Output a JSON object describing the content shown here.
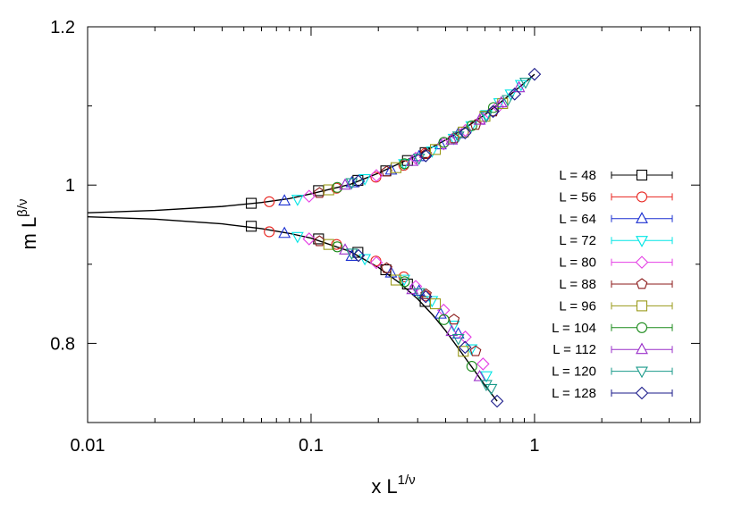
{
  "chart_data": {
    "type": "scatter",
    "xlabel": "x L",
    "xlabel_sup": "1/ν",
    "ylabel": "m L",
    "ylabel_sup": "β/ν",
    "x_scale": "log",
    "xlim": [
      0.01,
      5.5
    ],
    "ylim": [
      0.7,
      1.2
    ],
    "x_ticks": [
      {
        "value": 0.01,
        "label": "0.01"
      },
      {
        "value": 0.1,
        "label": "0.1"
      },
      {
        "value": 1,
        "label": "1"
      }
    ],
    "y_ticks": [
      {
        "value": 0.8,
        "label": "0.8"
      },
      {
        "value": 1.0,
        "label": "1"
      },
      {
        "value": 1.2,
        "label": "1.2"
      }
    ],
    "grid": false,
    "legend_position": "right",
    "fit_curves": [
      {
        "x": [
          0.01,
          0.02,
          0.04,
          0.06,
          0.08,
          0.1,
          0.15,
          0.2,
          0.3,
          0.4,
          0.5,
          0.6,
          0.7,
          0.8,
          0.9,
          1.0
        ],
        "y": [
          0.965,
          0.968,
          0.973,
          0.978,
          0.983,
          0.989,
          1.001,
          1.015,
          1.038,
          1.057,
          1.074,
          1.089,
          1.104,
          1.117,
          1.129,
          1.14
        ]
      },
      {
        "x": [
          0.01,
          0.02,
          0.04,
          0.06,
          0.08,
          0.1,
          0.15,
          0.2,
          0.25,
          0.3,
          0.35,
          0.4,
          0.45,
          0.5,
          0.55,
          0.6,
          0.68
        ],
        "y": [
          0.96,
          0.957,
          0.951,
          0.945,
          0.939,
          0.933,
          0.916,
          0.896,
          0.876,
          0.856,
          0.836,
          0.816,
          0.796,
          0.778,
          0.762,
          0.747,
          0.727
        ]
      }
    ],
    "series": [
      {
        "name": "L = 48",
        "marker": "square",
        "color": "#000000",
        "upper": {
          "x": [
            0.054,
            0.108,
            0.162,
            0.216,
            0.27,
            0.324
          ],
          "y": [
            0.977,
            0.993,
            1.006,
            1.018,
            1.031,
            1.041
          ]
        },
        "lower": {
          "x": [
            0.054,
            0.108,
            0.162,
            0.216,
            0.27,
            0.324
          ],
          "y": [
            0.948,
            0.932,
            0.915,
            0.893,
            0.875,
            0.853
          ]
        }
      },
      {
        "name": "L = 56",
        "marker": "circle",
        "color": "#e8231e",
        "upper": {
          "x": [
            0.065,
            0.13,
            0.195,
            0.26,
            0.325
          ],
          "y": [
            0.979,
            0.996,
            1.01,
            1.025,
            1.04
          ]
        },
        "lower": {
          "x": [
            0.065,
            0.13,
            0.195,
            0.26,
            0.325
          ],
          "y": [
            0.941,
            0.925,
            0.904,
            0.884,
            0.86
          ]
        }
      },
      {
        "name": "L = 64",
        "marker": "triangle-up",
        "color": "#1a2fd1",
        "upper": {
          "x": [
            0.076,
            0.152,
            0.228,
            0.304,
            0.38,
            0.456
          ],
          "y": [
            0.98,
            1.003,
            1.019,
            1.036,
            1.051,
            1.065
          ]
        },
        "lower": {
          "x": [
            0.076,
            0.152,
            0.228,
            0.304,
            0.38,
            0.456
          ],
          "y": [
            0.939,
            0.91,
            0.889,
            0.866,
            0.837,
            0.812
          ]
        }
      },
      {
        "name": "L = 72",
        "marker": "triangle-down",
        "color": "#00e5e5",
        "upper": {
          "x": [
            0.087,
            0.174,
            0.261,
            0.348,
            0.435,
            0.522,
            0.609,
            0.696,
            0.783,
            0.87
          ],
          "y": [
            0.982,
            1.008,
            1.027,
            1.043,
            1.059,
            1.075,
            1.089,
            1.104,
            1.115,
            1.127
          ]
        },
        "lower": {
          "x": [
            0.087,
            0.174,
            0.261,
            0.348,
            0.435,
            0.522,
            0.609
          ],
          "y": [
            0.935,
            0.907,
            0.881,
            0.854,
            0.823,
            0.793,
            0.759
          ]
        }
      },
      {
        "name": "L = 80",
        "marker": "diamond",
        "color": "#e43fe4",
        "upper": {
          "x": [
            0.098,
            0.196,
            0.294,
            0.392,
            0.49,
            0.588,
            0.686
          ],
          "y": [
            0.986,
            1.012,
            1.034,
            1.052,
            1.069,
            1.084,
            1.099
          ]
        },
        "lower": {
          "x": [
            0.098,
            0.196,
            0.294,
            0.392,
            0.49,
            0.588
          ],
          "y": [
            0.932,
            0.902,
            0.872,
            0.842,
            0.808,
            0.774
          ]
        }
      },
      {
        "name": "L = 88",
        "marker": "pentagon",
        "color": "#8b1a1a",
        "upper": {
          "x": [
            0.109,
            0.218,
            0.327,
            0.436,
            0.545,
            0.654
          ],
          "y": [
            0.99,
            1.017,
            1.039,
            1.059,
            1.076,
            1.093
          ]
        },
        "lower": {
          "x": [
            0.109,
            0.218,
            0.327,
            0.436,
            0.545
          ],
          "y": [
            0.929,
            0.895,
            0.862,
            0.83,
            0.79
          ]
        }
      },
      {
        "name": "L = 96",
        "marker": "square",
        "color": "#9a9a1a",
        "upper": {
          "x": [
            0.12,
            0.24,
            0.36,
            0.48,
            0.6,
            0.72
          ],
          "y": [
            0.994,
            1.022,
            1.045,
            1.067,
            1.087,
            1.103
          ]
        },
        "lower": {
          "x": [
            0.12,
            0.24,
            0.36,
            0.48
          ],
          "y": [
            0.925,
            0.88,
            0.85,
            0.79
          ]
        }
      },
      {
        "name": "L = 104",
        "marker": "circle",
        "color": "#1a8a1a",
        "upper": {
          "x": [
            0.131,
            0.262,
            0.393,
            0.524,
            0.655
          ],
          "y": [
            0.997,
            1.027,
            1.054,
            1.075,
            1.098
          ]
        },
        "lower": {
          "x": [
            0.131,
            0.262,
            0.393,
            0.524
          ],
          "y": [
            0.922,
            0.878,
            0.83,
            0.771
          ]
        }
      },
      {
        "name": "L = 112",
        "marker": "triangle-up",
        "color": "#9a2fc9",
        "upper": {
          "x": [
            0.142,
            0.284,
            0.426,
            0.568,
            0.71,
            0.852
          ],
          "y": [
            1.0,
            1.03,
            1.057,
            1.082,
            1.104,
            1.123
          ]
        },
        "lower": {
          "x": [
            0.142,
            0.284,
            0.426,
            0.568
          ],
          "y": [
            0.918,
            0.868,
            0.815,
            0.758
          ]
        }
      },
      {
        "name": "L = 120",
        "marker": "triangle-down",
        "color": "#1a9a8a",
        "upper": {
          "x": [
            0.152,
            0.304,
            0.456,
            0.608,
            0.76,
            0.912
          ],
          "y": [
            1.003,
            1.034,
            1.062,
            1.087,
            1.108,
            1.13
          ]
        },
        "lower": {
          "x": [
            0.152,
            0.304,
            0.456,
            0.608,
            0.64
          ],
          "y": [
            0.914,
            0.864,
            0.806,
            0.748,
            0.743
          ]
        }
      },
      {
        "name": "L = 128",
        "marker": "diamond",
        "color": "#1a1a8a",
        "upper": {
          "x": [
            0.163,
            0.326,
            0.489,
            0.652,
            0.815,
            1.0
          ],
          "y": [
            1.005,
            1.037,
            1.066,
            1.093,
            1.115,
            1.14
          ]
        },
        "lower": {
          "x": [
            0.163,
            0.326,
            0.489,
            0.68
          ],
          "y": [
            0.911,
            0.859,
            0.795,
            0.727
          ]
        }
      }
    ]
  }
}
